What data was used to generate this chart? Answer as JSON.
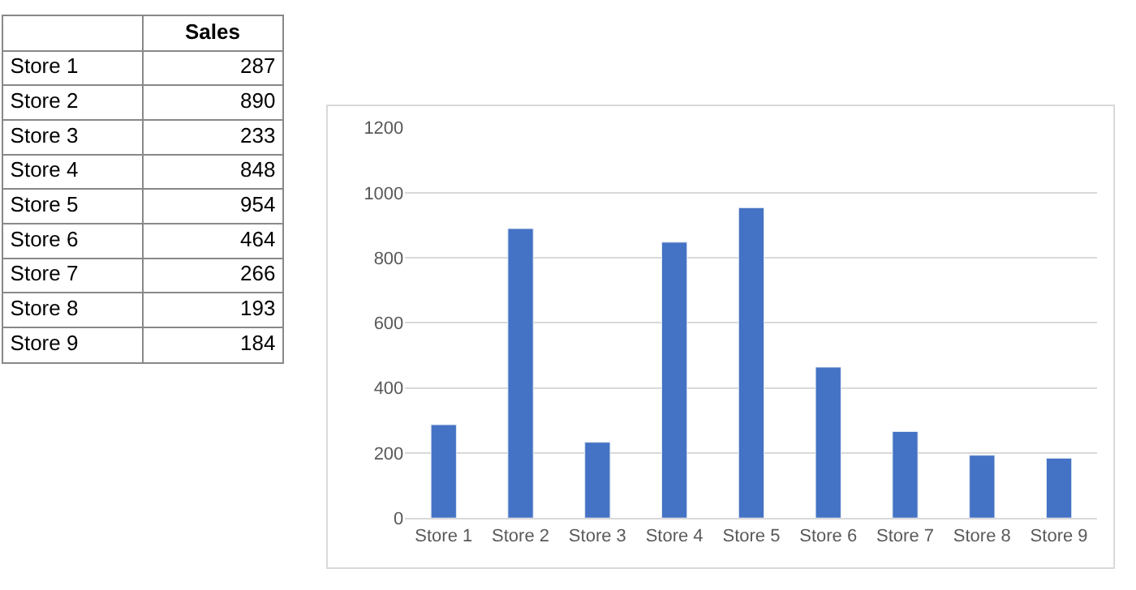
{
  "chart_data": [
    {
      "type": "other",
      "categories": [
        "Store 1",
        "Store 2",
        "Store 3",
        "Store 4",
        "Store 5",
        "Store 6",
        "Store 7",
        "Store 8",
        "Store 9"
      ],
      "series": [
        {
          "name": "Sales",
          "values": [
            287,
            890,
            233,
            848,
            954,
            464,
            266,
            193,
            184
          ]
        }
      ],
      "data_labels": true
    },
    {
      "type": "bar",
      "categories": [
        "Store 1",
        "Store 2",
        "Store 3",
        "Store 4",
        "Store 5",
        "Store 6",
        "Store 7",
        "Store 8",
        "Store 9"
      ],
      "series": [
        {
          "color": "#4472c4",
          "values": [
            287,
            890,
            233,
            848,
            954,
            464,
            266,
            193,
            184
          ]
        }
      ],
      "ylim": [
        0,
        1200
      ],
      "yticks": [
        0,
        200,
        400,
        600,
        800,
        1000,
        1200
      ],
      "grid": "y"
    }
  ]
}
